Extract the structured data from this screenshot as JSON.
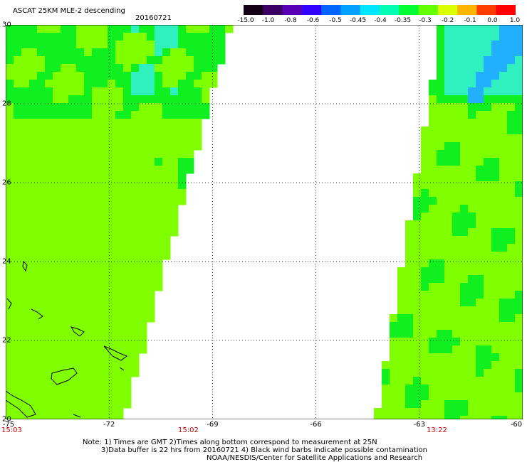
{
  "header": {
    "title": "ASCAT 25KM MLE-2 descending",
    "date": "20160721"
  },
  "colorbar": {
    "labels": [
      "-15.0",
      "-1.0",
      "-0.8",
      "-0.6",
      "-0.5",
      "-0.45",
      "-0.4",
      "-0.35",
      "-0.3",
      "-0.2",
      "-0.1",
      "0.0",
      "1.0"
    ],
    "colors": [
      "#140014",
      "#3c0064",
      "#5a00b4",
      "#3200ff",
      "#0064ff",
      "#00a0ff",
      "#00e6ff",
      "#00ffb4",
      "#00ff32",
      "#64ff00",
      "#dcff00",
      "#ffb400",
      "#ff3c00",
      "#ff0000"
    ]
  },
  "map": {
    "lon_ticks": [
      "-75",
      "-72",
      "-69",
      "-66",
      "-63",
      "-60"
    ],
    "lat_ticks": [
      "30",
      "28",
      "26",
      "24",
      "22",
      "20"
    ],
    "lon_range": [
      -75,
      -60
    ],
    "lat_range": [
      20,
      30
    ],
    "times": [
      "15:03",
      "15:02",
      "13:22"
    ],
    "swath_color_main": "#80ff00",
    "swath_color_green": "#10f020",
    "swath_color_cyan": "#30f0c0",
    "swath_color_blue": "#20b0ff"
  },
  "notes": {
    "line1": "Note: 1) Times are GMT 2)Times along bottom correspond to measurement at 25N",
    "line2": "3)Data buffer is 22 hrs from 20160721 4) Black wind barbs indicate possible contamination",
    "line3": "NOAA/NESDIS/Center for Satellite Applications and Research"
  }
}
